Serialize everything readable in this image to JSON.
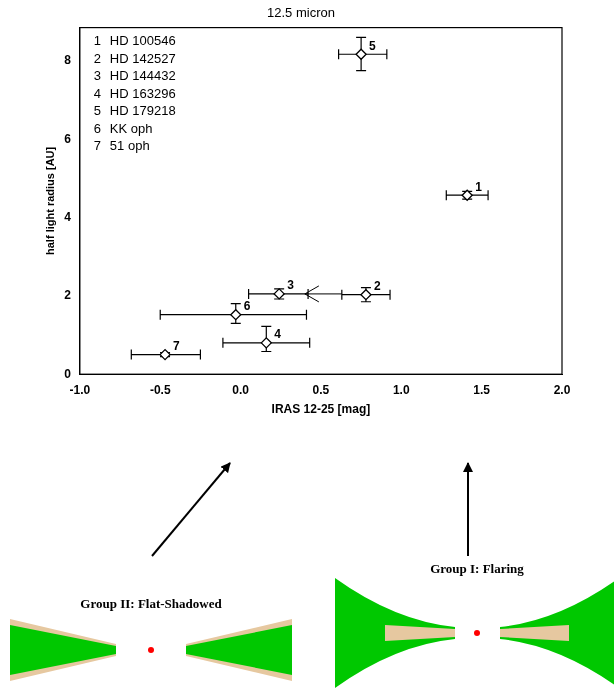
{
  "chart_data": {
    "type": "scatter",
    "title": "12.5 micron",
    "x_label": "IRAS 12-25 [mag]",
    "y_label": "half light radius [AU]",
    "xlim": [
      -1,
      2
    ],
    "xticks": [
      {
        "value": -1,
        "label": "-1.0"
      },
      {
        "value": -0.5,
        "label": "-0.5"
      },
      {
        "value": 0,
        "label": "0.0"
      },
      {
        "value": 0.5,
        "label": "0.5"
      },
      {
        "value": 1,
        "label": "1.0"
      },
      {
        "value": 1.5,
        "label": "1.5"
      },
      {
        "value": 2,
        "label": "2.0"
      }
    ],
    "ylim": [
      0,
      8.85
    ],
    "yticks": [
      0,
      2,
      4,
      6,
      8
    ],
    "grid": false,
    "color": "#000000",
    "marker": "diamond",
    "point_labels": [
      "1",
      "2",
      "3",
      "4",
      "5",
      "6",
      "7"
    ],
    "x": [
      1.41,
      0.78,
      0.24,
      0.16,
      0.75,
      -0.03,
      -0.47
    ],
    "values": [
      4.57,
      2.03,
      2.05,
      0.8,
      8.17,
      1.52,
      0.5
    ],
    "x_error_bars": [
      [
        1.28,
        1.54
      ],
      [
        0.63,
        0.93
      ],
      [
        0.05,
        0.42
      ],
      [
        -0.11,
        0.43
      ],
      [
        0.61,
        0.91
      ],
      [
        -0.5,
        0.41
      ],
      [
        -0.68,
        -0.25
      ]
    ],
    "y_error_bars": [
      [
        4.47,
        4.67
      ],
      [
        1.85,
        2.21
      ],
      [
        1.92,
        2.18
      ],
      [
        0.58,
        1.22
      ],
      [
        7.75,
        8.6
      ],
      [
        1.3,
        1.8
      ],
      [
        0.45,
        0.55
      ]
    ],
    "limit_arrow": {
      "y": 2.05,
      "x_from": 0.63,
      "x_to": 0.4
    },
    "key_entries": [
      {
        "number": "1",
        "name": "HD 100546"
      },
      {
        "number": "2",
        "name": "HD 142527"
      },
      {
        "number": "3",
        "name": "HD 144432"
      },
      {
        "number": "4",
        "name": "HD 163296"
      },
      {
        "number": "5",
        "name": "HD 179218"
      },
      {
        "number": "6",
        "name": "KK oph"
      },
      {
        "number": "7",
        "name": "51 oph"
      }
    ]
  },
  "diagrams": {
    "left": "Group II: Flat-Shadowed",
    "right": "Group I: Flaring"
  }
}
